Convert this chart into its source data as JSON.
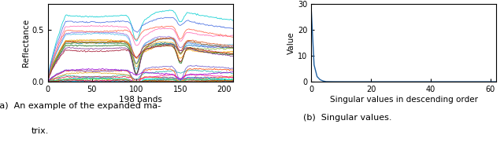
{
  "left_plot": {
    "xlabel": "198 bands",
    "ylabel": "Reflectance",
    "xlim": [
      0,
      210
    ],
    "ylim": [
      0,
      0.75
    ],
    "xticks": [
      0,
      50,
      100,
      150,
      200
    ],
    "yticks": [
      0,
      0.5
    ],
    "n_bands": 198,
    "n_spectra": 30,
    "caption_a": "(a)  An example of the expanded ma-",
    "caption_b": "trix."
  },
  "right_plot": {
    "xlabel": "Singular values in descending order",
    "ylabel": "Value",
    "xlim": [
      0,
      62
    ],
    "ylim": [
      0,
      30
    ],
    "xticks": [
      0,
      20,
      40,
      60
    ],
    "yticks": [
      0,
      10,
      20,
      30
    ],
    "caption": "(b)  Singular values."
  },
  "line_color": "#2060a0",
  "bg_color": "#ffffff"
}
